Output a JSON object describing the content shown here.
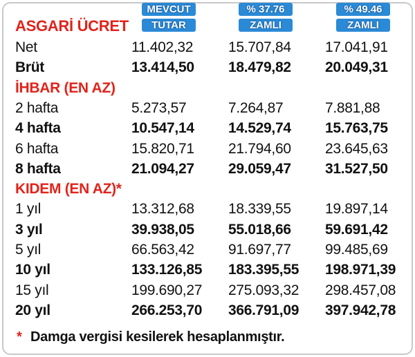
{
  "header": {
    "title": "ASGARİ ÜCRET",
    "columns": [
      [
        "MEVCUT",
        "TUTAR"
      ],
      [
        "% 37.76",
        "ZAMLI"
      ],
      [
        "% 49.46",
        "ZAMLI"
      ]
    ]
  },
  "sections": [
    {
      "rows": [
        {
          "label": "Net",
          "values": [
            "11.402,32",
            "15.707,84",
            "17.041,91"
          ]
        },
        {
          "label": "Brüt",
          "values": [
            "13.414,50",
            "18.479,82",
            "20.049,31"
          ]
        }
      ]
    },
    {
      "title": "İHBAR (EN AZ)",
      "rows": [
        {
          "label": "2 hafta",
          "values": [
            "5.273,57",
            "7.264,87",
            "7.881,88"
          ]
        },
        {
          "label": "4 hafta",
          "values": [
            "10.547,14",
            "14.529,74",
            "15.763,75"
          ]
        },
        {
          "label": "6 hafta",
          "values": [
            "15.820,71",
            "21.794,60",
            "23.645,63"
          ]
        },
        {
          "label": "8 hafta",
          "values": [
            "21.094,27",
            "29.059,47",
            "31.527,50"
          ]
        }
      ]
    },
    {
      "title": "KIDEM (EN AZ)*",
      "rows": [
        {
          "label": "1 yıl",
          "values": [
            "13.312,68",
            "18.339,55",
            "19.897,14"
          ]
        },
        {
          "label": "3 yıl",
          "values": [
            "39.938,05",
            "55.018,66",
            "59.691,42"
          ]
        },
        {
          "label": "5 yıl",
          "values": [
            "66.563,42",
            "91.697,77",
            "99.485,69"
          ]
        },
        {
          "label": "10 yıl",
          "values": [
            "133.126,85",
            "183.395,55",
            "198.971,39"
          ]
        },
        {
          "label": "15 yıl",
          "values": [
            "199.690,27",
            "275.093,32",
            "298.457,08"
          ]
        },
        {
          "label": "20 yıl",
          "values": [
            "266.253,70",
            "366.791,09",
            "397.942,78"
          ]
        }
      ]
    }
  ],
  "note": {
    "marker": "*",
    "text": "Damga vergisi kesilerek hesaplanmıştır."
  }
}
